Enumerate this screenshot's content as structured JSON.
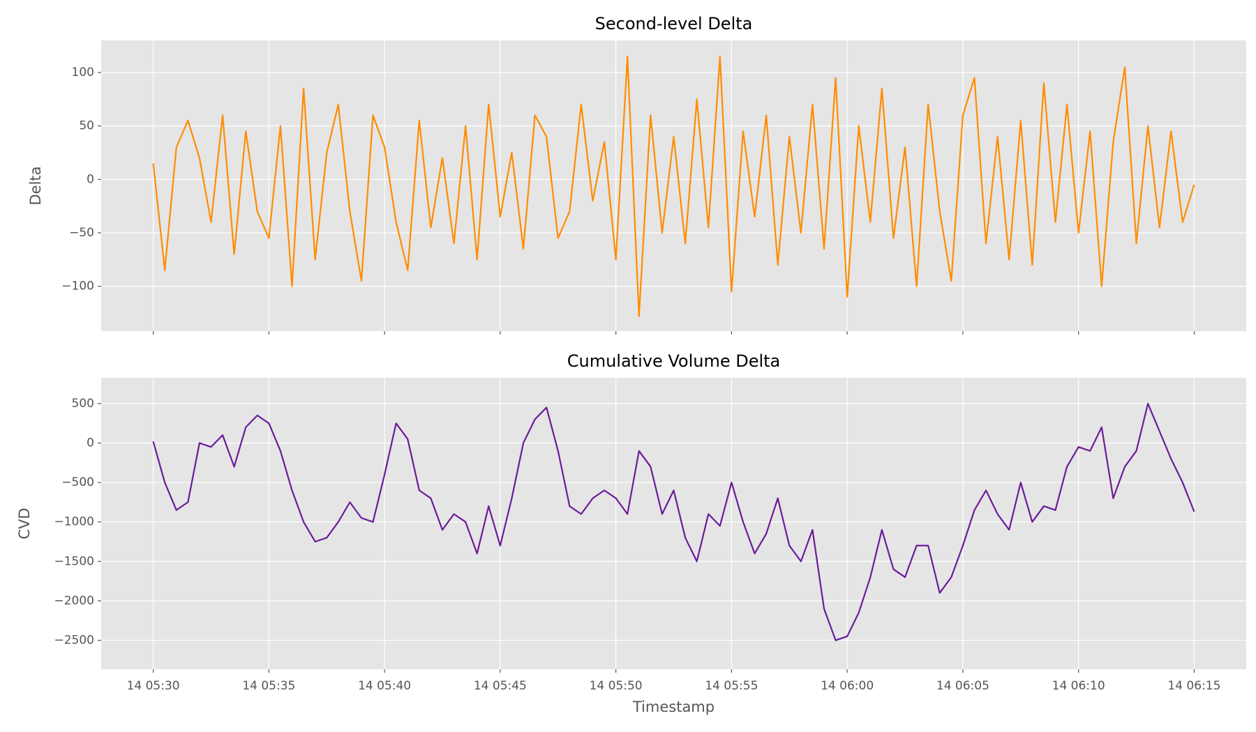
{
  "chart_data": [
    {
      "type": "line",
      "title": "Second-level Delta",
      "ylabel": "Delta",
      "x": [
        "14 05:30:00",
        "14 05:30:30",
        "14 05:31:00",
        "14 05:31:30",
        "14 05:32:00",
        "14 05:32:30",
        "14 05:33:00",
        "14 05:33:30",
        "14 05:34:00",
        "14 05:34:30",
        "14 05:35:00",
        "14 05:35:30",
        "14 05:36:00",
        "14 05:36:30",
        "14 05:37:00",
        "14 05:37:30",
        "14 05:38:00",
        "14 05:38:30",
        "14 05:39:00",
        "14 05:39:30",
        "14 05:40:00",
        "14 05:40:30",
        "14 05:41:00",
        "14 05:41:30",
        "14 05:42:00",
        "14 05:42:30",
        "14 05:43:00",
        "14 05:43:30",
        "14 05:44:00",
        "14 05:44:30",
        "14 05:45:00",
        "14 05:45:30",
        "14 05:46:00",
        "14 05:46:30",
        "14 05:47:00",
        "14 05:47:30",
        "14 05:48:00",
        "14 05:48:30",
        "14 05:49:00",
        "14 05:49:30",
        "14 05:50:00",
        "14 05:50:30",
        "14 05:51:00",
        "14 05:51:30",
        "14 05:52:00",
        "14 05:52:30",
        "14 05:53:00",
        "14 05:53:30",
        "14 05:54:00",
        "14 05:54:30",
        "14 05:55:00",
        "14 05:55:30",
        "14 05:56:00",
        "14 05:56:30",
        "14 05:57:00",
        "14 05:57:30",
        "14 05:58:00",
        "14 05:58:30",
        "14 05:59:00",
        "14 05:59:30",
        "14 06:00:00",
        "14 06:00:30",
        "14 06:01:00",
        "14 06:01:30",
        "14 06:02:00",
        "14 06:02:30",
        "14 06:03:00",
        "14 06:03:30",
        "14 06:04:00",
        "14 06:04:30",
        "14 06:05:00",
        "14 06:05:30",
        "14 06:06:00",
        "14 06:06:30",
        "14 06:07:00",
        "14 06:07:30",
        "14 06:08:00",
        "14 06:08:30",
        "14 06:09:00",
        "14 06:09:30",
        "14 06:10:00",
        "14 06:10:30",
        "14 06:11:00",
        "14 06:11:30",
        "14 06:12:00",
        "14 06:12:30",
        "14 06:13:00",
        "14 06:13:30",
        "14 06:14:00",
        "14 06:14:30",
        "14 06:15:00"
      ],
      "series": [
        {
          "name": "Delta",
          "color": "#ff8c00",
          "values": [
            15,
            -85,
            30,
            55,
            20,
            -40,
            60,
            -70,
            45,
            -30,
            -55,
            50,
            -100,
            85,
            -75,
            25,
            70,
            -30,
            -95,
            60,
            30,
            -40,
            -85,
            55,
            -45,
            20,
            -60,
            50,
            -75,
            70,
            -35,
            25,
            -65,
            60,
            40,
            -55,
            -30,
            70,
            -20,
            35,
            -75,
            115,
            -128,
            60,
            -50,
            40,
            -60,
            75,
            -45,
            115,
            -105,
            45,
            -35,
            60,
            -80,
            40,
            -50,
            70,
            -65,
            95,
            -110,
            50,
            -40,
            85,
            -55,
            30,
            -100,
            70,
            -30,
            -95,
            60,
            95,
            -60,
            40,
            -75,
            55,
            -80,
            90,
            -40,
            70,
            -50,
            45,
            -100,
            35,
            105,
            -60,
            50,
            -45,
            45,
            -40,
            -5
          ]
        }
      ],
      "xlim": [
        "14 05:27:45",
        "14 06:17:15"
      ],
      "ylim": [
        -142,
        130
      ],
      "yticks": [
        {
          "value": -100,
          "label": "−100"
        },
        {
          "value": -50,
          "label": "−50"
        },
        0,
        50,
        100
      ],
      "grid": true
    },
    {
      "type": "line",
      "title": "Cumulative Volume Delta",
      "ylabel": "CVD",
      "xlabel": "Timestamp",
      "x": [
        "14 05:30:00",
        "14 05:30:30",
        "14 05:31:00",
        "14 05:31:30",
        "14 05:32:00",
        "14 05:32:30",
        "14 05:33:00",
        "14 05:33:30",
        "14 05:34:00",
        "14 05:34:30",
        "14 05:35:00",
        "14 05:35:30",
        "14 05:36:00",
        "14 05:36:30",
        "14 05:37:00",
        "14 05:37:30",
        "14 05:38:00",
        "14 05:38:30",
        "14 05:39:00",
        "14 05:39:30",
        "14 05:40:00",
        "14 05:40:30",
        "14 05:41:00",
        "14 05:41:30",
        "14 05:42:00",
        "14 05:42:30",
        "14 05:43:00",
        "14 05:43:30",
        "14 05:44:00",
        "14 05:44:30",
        "14 05:45:00",
        "14 05:45:30",
        "14 05:46:00",
        "14 05:46:30",
        "14 05:47:00",
        "14 05:47:30",
        "14 05:48:00",
        "14 05:48:30",
        "14 05:49:00",
        "14 05:49:30",
        "14 05:50:00",
        "14 05:50:30",
        "14 05:51:00",
        "14 05:51:30",
        "14 05:52:00",
        "14 05:52:30",
        "14 05:53:00",
        "14 05:53:30",
        "14 05:54:00",
        "14 05:54:30",
        "14 05:55:00",
        "14 05:55:30",
        "14 05:56:00",
        "14 05:56:30",
        "14 05:57:00",
        "14 05:57:30",
        "14 05:58:00",
        "14 05:58:30",
        "14 05:59:00",
        "14 05:59:30",
        "14 06:00:00",
        "14 06:00:30",
        "14 06:01:00",
        "14 06:01:30",
        "14 06:02:00",
        "14 06:02:30",
        "14 06:03:00",
        "14 06:03:30",
        "14 06:04:00",
        "14 06:04:30",
        "14 06:05:00",
        "14 06:05:30",
        "14 06:06:00",
        "14 06:06:30",
        "14 06:07:00",
        "14 06:07:30",
        "14 06:08:00",
        "14 06:08:30",
        "14 06:09:00",
        "14 06:09:30",
        "14 06:10:00",
        "14 06:10:30",
        "14 06:11:00",
        "14 06:11:30",
        "14 06:12:00",
        "14 06:12:30",
        "14 06:13:00",
        "14 06:13:30",
        "14 06:14:00",
        "14 06:14:30",
        "14 06:15:00"
      ],
      "series": [
        {
          "name": "CVD",
          "color": "#6a1b9a",
          "values": [
            20,
            -500,
            -850,
            -750,
            0,
            -50,
            100,
            -300,
            200,
            350,
            250,
            -100,
            -600,
            -1000,
            -1250,
            -1200,
            -1000,
            -750,
            -950,
            -1000,
            -400,
            250,
            50,
            -600,
            -700,
            -1100,
            -900,
            -1000,
            -1400,
            -800,
            -1300,
            -700,
            0,
            300,
            450,
            -100,
            -800,
            -900,
            -700,
            -600,
            -700,
            -900,
            -100,
            -300,
            -900,
            -600,
            -1200,
            -1500,
            -900,
            -1050,
            -500,
            -1000,
            -1400,
            -1150,
            -700,
            -1300,
            -1500,
            -1100,
            -2100,
            -2500,
            -2450,
            -2150,
            -1700,
            -1100,
            -1600,
            -1700,
            -1300,
            -1300,
            -1900,
            -1700,
            -1300,
            -850,
            -600,
            -900,
            -1100,
            -500,
            -1000,
            -800,
            -850,
            -300,
            -50,
            -100,
            200,
            -700,
            -300,
            -100,
            500,
            150,
            -200,
            -500,
            -870
          ]
        }
      ],
      "xlim": [
        "14 05:27:45",
        "14 06:17:15"
      ],
      "xticks": [
        {
          "value": "14 05:30",
          "label": "14 05:30"
        },
        {
          "value": "14 05:35",
          "label": "14 05:35"
        },
        {
          "value": "14 05:40",
          "label": "14 05:40"
        },
        {
          "value": "14 05:45",
          "label": "14 05:45"
        },
        {
          "value": "14 05:50",
          "label": "14 05:50"
        },
        {
          "value": "14 05:55",
          "label": "14 05:55"
        },
        {
          "value": "14 06:00",
          "label": "14 06:00"
        },
        {
          "value": "14 06:05",
          "label": "14 06:05"
        },
        {
          "value": "14 06:10",
          "label": "14 06:10"
        },
        {
          "value": "14 06:15",
          "label": "14 06:15"
        }
      ],
      "ylim": [
        -2867,
        826
      ],
      "yticks": [
        {
          "value": -2500,
          "label": "−2500"
        },
        {
          "value": -2000,
          "label": "−2000"
        },
        {
          "value": -1500,
          "label": "−1500"
        },
        {
          "value": -1000,
          "label": "−1000"
        },
        {
          "value": -500,
          "label": "−500"
        },
        0,
        500
      ],
      "grid": true
    }
  ]
}
